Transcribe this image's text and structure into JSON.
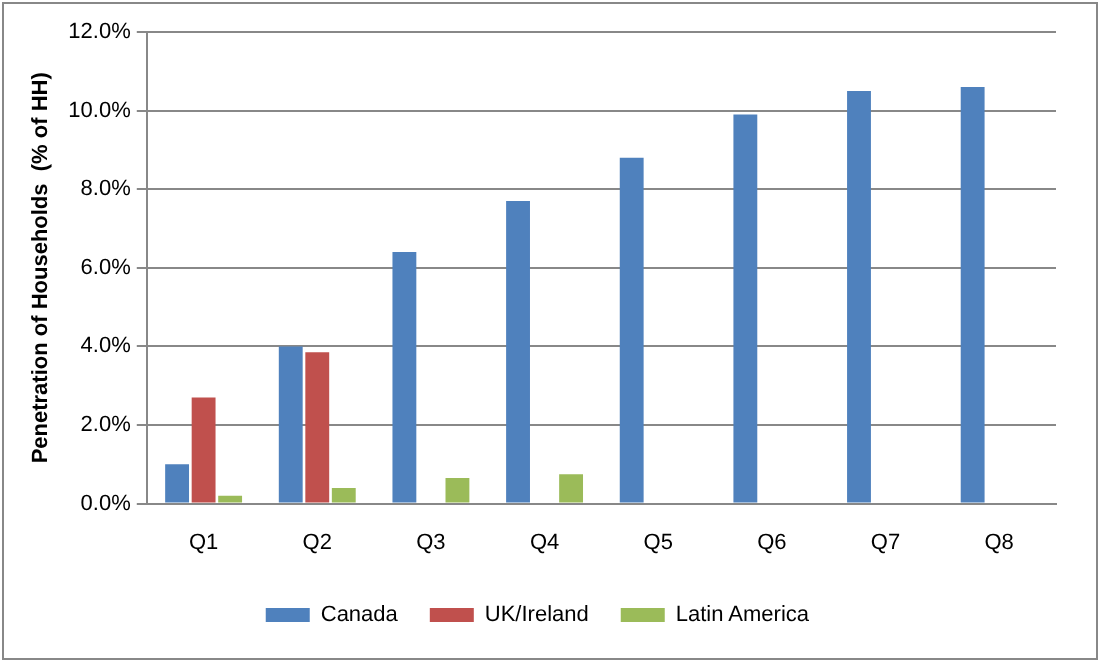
{
  "chart_data": {
    "type": "bar",
    "ylabel": "Penetration of Households  (% of HH)",
    "categories": [
      "Q1",
      "Q2",
      "Q3",
      "Q4",
      "Q5",
      "Q6",
      "Q7",
      "Q8"
    ],
    "series": [
      {
        "name": "Canada",
        "color": "#4f81bd",
        "values": [
          1.0,
          4.0,
          6.4,
          7.7,
          8.8,
          9.9,
          10.5,
          10.6
        ]
      },
      {
        "name": "UK/Ireland",
        "color": "#c0504d",
        "values": [
          2.7,
          3.85,
          null,
          null,
          null,
          null,
          null,
          null
        ]
      },
      {
        "name": "Latin America",
        "color": "#9bbb59",
        "values": [
          0.2,
          0.4,
          0.65,
          0.75,
          null,
          null,
          null,
          null
        ]
      }
    ],
    "ylim": [
      0,
      12
    ],
    "yticks": [
      {
        "value": 0,
        "label": "0.0%"
      },
      {
        "value": 2,
        "label": "2.0%"
      },
      {
        "value": 4,
        "label": "4.0%"
      },
      {
        "value": 6,
        "label": "6.0%"
      },
      {
        "value": 8,
        "label": "8.0%"
      },
      {
        "value": 10,
        "label": "10.0%"
      },
      {
        "value": 12,
        "label": "12.0%"
      }
    ],
    "grid": "y",
    "legend": "bottom"
  }
}
